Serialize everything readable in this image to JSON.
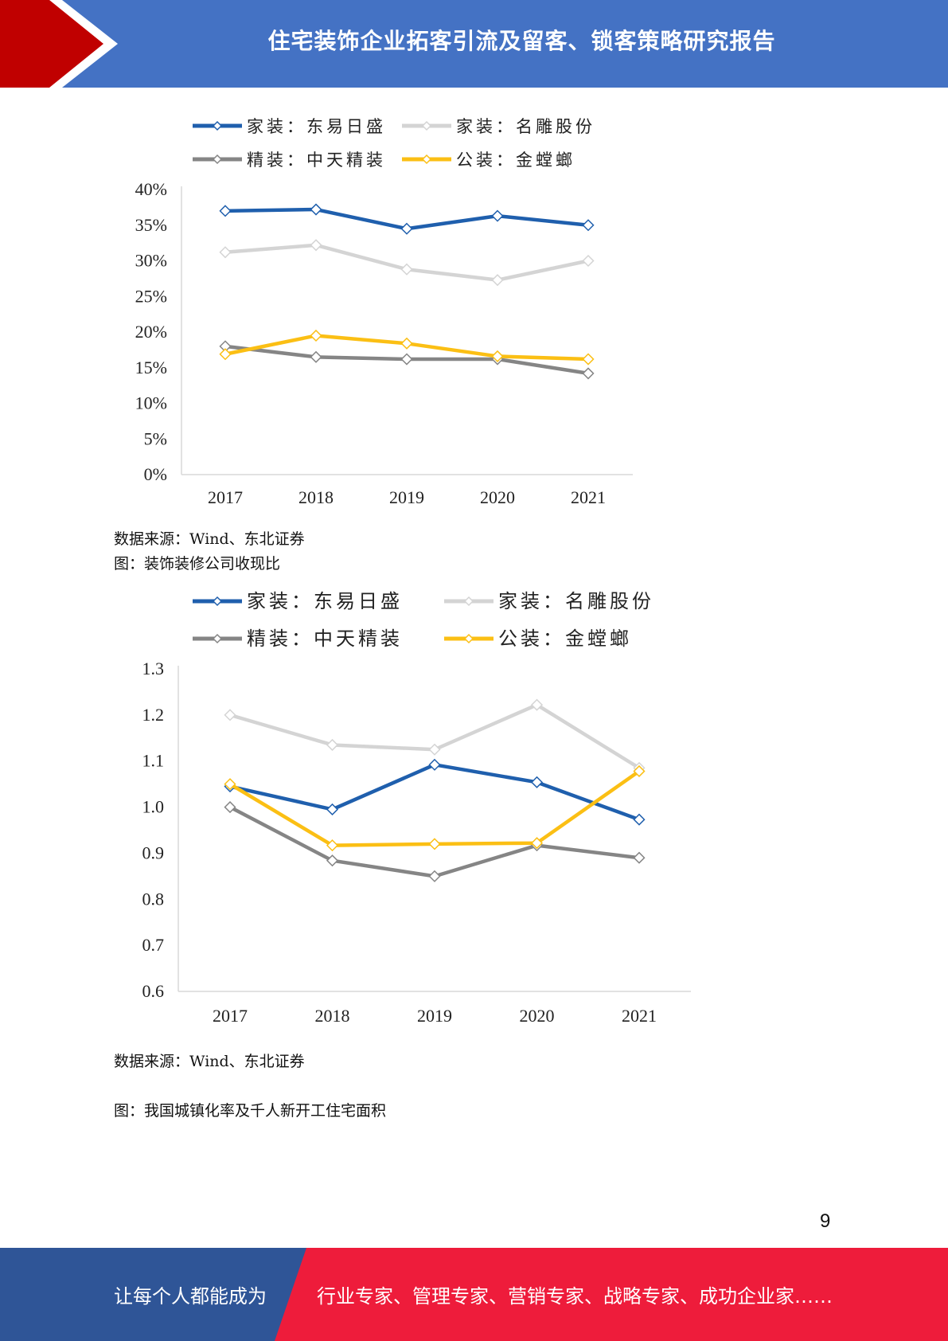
{
  "header": {
    "title": "住宅装饰企业拓客引流及留客、锁客策略研究报告"
  },
  "chart_data": [
    {
      "type": "line",
      "categories": [
        "2017",
        "2018",
        "2019",
        "2020",
        "2021"
      ],
      "y_ticks": [
        "0%",
        "5%",
        "10%",
        "15%",
        "20%",
        "25%",
        "30%",
        "35%",
        "40%"
      ],
      "ylim": [
        0,
        40
      ],
      "legend_position": "top",
      "series": [
        {
          "name": "家装：东易日盛",
          "color": "#1f5fad",
          "values": [
            37.0,
            37.2,
            34.5,
            36.3,
            35.0
          ]
        },
        {
          "name": "家装：名雕股份",
          "color": "#d4d4d4",
          "values": [
            31.2,
            32.2,
            28.8,
            27.3,
            30.0
          ]
        },
        {
          "name": "精装：中天精装",
          "color": "#858585",
          "values": [
            18.0,
            16.5,
            16.2,
            16.2,
            14.2
          ]
        },
        {
          "name": "公装：金螳螂",
          "color": "#fbbf14",
          "values": [
            16.9,
            19.5,
            18.4,
            16.6,
            16.2
          ]
        }
      ]
    },
    {
      "type": "line",
      "categories": [
        "2017",
        "2018",
        "2019",
        "2020",
        "2021"
      ],
      "y_ticks": [
        "0.6",
        "0.7",
        "0.8",
        "0.9",
        "1.0",
        "1.1",
        "1.2",
        "1.3"
      ],
      "ylim": [
        0.6,
        1.3
      ],
      "legend_position": "top",
      "series": [
        {
          "name": "家装：东易日盛",
          "color": "#1f5fad",
          "values": [
            1.045,
            0.995,
            1.092,
            1.054,
            0.973
          ]
        },
        {
          "name": "家装：名雕股份",
          "color": "#d4d4d4",
          "values": [
            1.2,
            1.135,
            1.125,
            1.222,
            1.085
          ]
        },
        {
          "name": "精装：中天精装",
          "color": "#858585",
          "values": [
            1.0,
            0.884,
            0.85,
            0.917,
            0.89
          ]
        },
        {
          "name": "公装：金螳螂",
          "color": "#fbbf14",
          "values": [
            1.05,
            0.917,
            0.92,
            0.922,
            1.078
          ]
        }
      ]
    }
  ],
  "captions": {
    "source1": "数据来源：Wind、东北证券",
    "figure2_title": "图：装饰装修公司收现比",
    "source2": "数据来源：Wind、东北证券",
    "figure3_title": "图：我国城镇化率及千人新开工住宅面积"
  },
  "page_number": "9",
  "footer": {
    "slogan_left": "让每个人都能成为",
    "slogan_right": "行业专家、管理专家、营销专家、战略专家、成功企业家……"
  },
  "colors": {
    "header_blue": "#4472c4",
    "header_red": "#c00000",
    "footer_blue": "#2f5597",
    "footer_red": "#ee1c3b"
  }
}
